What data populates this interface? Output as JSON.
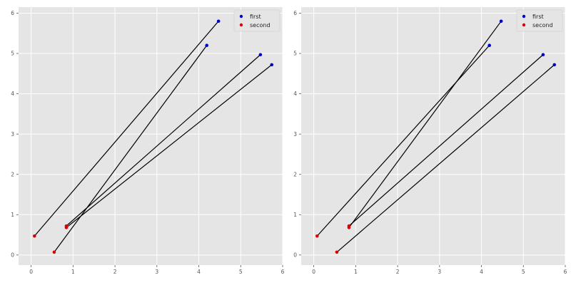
{
  "chart_data": [
    {
      "type": "scatter",
      "title": "",
      "xlabel": "",
      "ylabel": "",
      "xlim": [
        -0.3,
        6.0
      ],
      "ylim": [
        -0.25,
        6.15
      ],
      "xticks": [
        0,
        1,
        2,
        3,
        4,
        5,
        6
      ],
      "yticks": [
        0,
        1,
        2,
        3,
        4,
        5,
        6
      ],
      "grid": true,
      "legend": "top-right",
      "series": [
        {
          "name": "first",
          "color": "#0000cc",
          "points": [
            [
              4.47,
              5.8
            ],
            [
              4.19,
              5.2
            ],
            [
              5.47,
              4.97
            ],
            [
              5.74,
              4.72
            ]
          ]
        },
        {
          "name": "second",
          "color": "#dd0000",
          "points": [
            [
              0.08,
              0.47
            ],
            [
              0.55,
              0.07
            ],
            [
              0.84,
              0.72
            ],
            [
              0.84,
              0.68
            ]
          ]
        }
      ],
      "segments": [
        [
          [
            0.08,
            0.47
          ],
          [
            4.47,
            5.8
          ]
        ],
        [
          [
            0.55,
            0.07
          ],
          [
            4.19,
            5.2
          ]
        ],
        [
          [
            0.84,
            0.72
          ],
          [
            5.47,
            4.97
          ]
        ],
        [
          [
            0.84,
            0.68
          ],
          [
            5.74,
            4.72
          ]
        ]
      ]
    },
    {
      "type": "scatter",
      "title": "",
      "xlabel": "",
      "ylabel": "",
      "xlim": [
        -0.3,
        6.0
      ],
      "ylim": [
        -0.25,
        6.15
      ],
      "xticks": [
        0,
        1,
        2,
        3,
        4,
        5,
        6
      ],
      "yticks": [
        0,
        1,
        2,
        3,
        4,
        5,
        6
      ],
      "grid": true,
      "legend": "top-right",
      "series": [
        {
          "name": "first",
          "color": "#0000cc",
          "points": [
            [
              4.47,
              5.8
            ],
            [
              4.19,
              5.2
            ],
            [
              5.47,
              4.97
            ],
            [
              5.74,
              4.72
            ]
          ]
        },
        {
          "name": "second",
          "color": "#dd0000",
          "points": [
            [
              0.08,
              0.47
            ],
            [
              0.55,
              0.07
            ],
            [
              0.84,
              0.72
            ],
            [
              0.84,
              0.68
            ]
          ]
        }
      ],
      "segments": [
        [
          [
            0.08,
            0.47
          ],
          [
            4.19,
            5.2
          ]
        ],
        [
          [
            0.84,
            0.68
          ],
          [
            4.47,
            5.8
          ]
        ],
        [
          [
            0.84,
            0.72
          ],
          [
            5.47,
            4.97
          ]
        ],
        [
          [
            0.55,
            0.07
          ],
          [
            5.74,
            4.72
          ]
        ]
      ]
    }
  ]
}
